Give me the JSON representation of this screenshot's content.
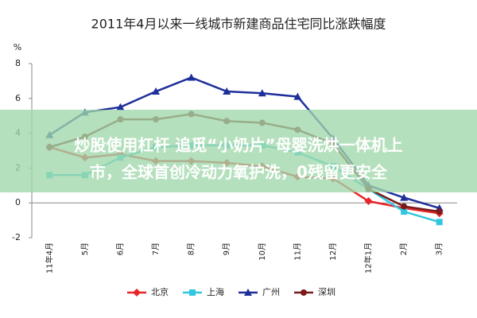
{
  "chart_data": {
    "type": "line",
    "title": "2011年4月以来一线城市新建商品住宅同比涨跌幅度",
    "ylabel": "%",
    "categories": [
      "11年4月",
      "5月",
      "6月",
      "7月",
      "8月",
      "9月",
      "10月",
      "11月",
      "12月",
      "12年1月",
      "2月",
      "3月"
    ],
    "series": [
      {
        "name": "北京",
        "color": "#e8262a",
        "marker": "diamond",
        "values": [
          3.2,
          2.6,
          2.8,
          2.4,
          2.4,
          2.3,
          2.1,
          1.5,
          1.4,
          0.1,
          -0.3,
          -0.6
        ]
      },
      {
        "name": "上海",
        "color": "#33c6e0",
        "marker": "square",
        "values": [
          1.6,
          1.6,
          2.6,
          3.2,
          3.3,
          3.3,
          3.3,
          2.9,
          2.1,
          0.8,
          -0.5,
          -1.1
        ]
      },
      {
        "name": "广州",
        "color": "#1f2f9a",
        "marker": "triangle",
        "values": [
          3.9,
          5.2,
          5.5,
          6.4,
          7.2,
          6.4,
          6.3,
          6.1,
          3.7,
          1.0,
          0.3,
          -0.3
        ]
      },
      {
        "name": "深圳",
        "color": "#7a1a1a",
        "marker": "circle",
        "values": [
          3.2,
          3.8,
          4.8,
          4.8,
          5.1,
          4.7,
          4.6,
          4.2,
          3.4,
          0.8,
          -0.2,
          -0.5
        ]
      }
    ],
    "ylim": [
      -2,
      8
    ],
    "yticks": [
      -2,
      0,
      2,
      4,
      6,
      8
    ],
    "grid": false,
    "legend": "bottom"
  },
  "overlay": {
    "lines": [
      "炒股使用杠杆 追觅“小奶片”母婴洗烘一体机上",
      "市，全球首创冷动力氧护洗，0残留更安全"
    ]
  }
}
